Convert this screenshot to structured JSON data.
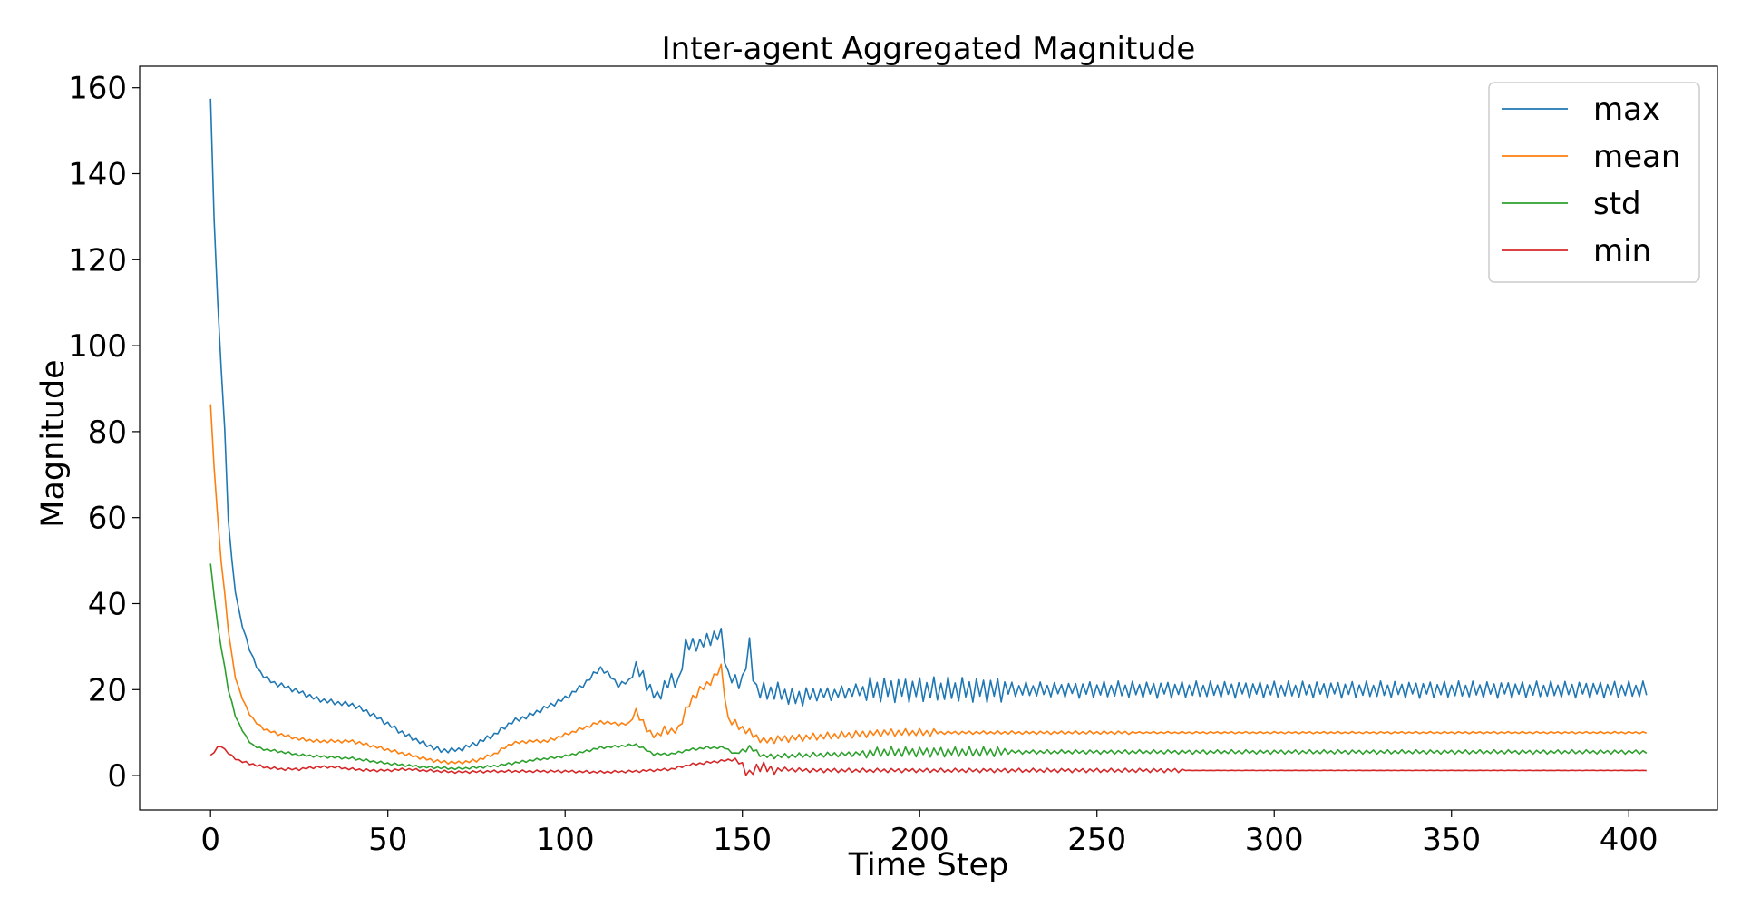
{
  "chart_data": {
    "type": "line",
    "title": "Inter-agent Aggregated Magnitude",
    "xlabel": "Time Step",
    "ylabel": "Magnitude",
    "xlim": [
      -20,
      425
    ],
    "ylim": [
      -8,
      165
    ],
    "xticks": [
      0,
      50,
      100,
      150,
      200,
      250,
      300,
      350,
      400
    ],
    "yticks": [
      0,
      20,
      40,
      60,
      80,
      100,
      120,
      140,
      160
    ],
    "grid": false,
    "legend_position": "top-right",
    "x_range": [
      0,
      405
    ],
    "series": [
      {
        "name": "max",
        "color": "#1f77b4",
        "keypoints": [
          [
            0,
            157
          ],
          [
            1,
            130
          ],
          [
            2,
            110
          ],
          [
            3,
            95
          ],
          [
            4,
            80
          ],
          [
            5,
            60
          ],
          [
            6,
            50
          ],
          [
            7,
            43
          ],
          [
            8,
            38
          ],
          [
            10,
            32
          ],
          [
            12,
            27
          ],
          [
            14,
            24
          ],
          [
            16,
            22.5
          ],
          [
            18,
            21.5
          ],
          [
            20,
            21
          ],
          [
            25,
            19.5
          ],
          [
            30,
            17.8
          ],
          [
            35,
            17
          ],
          [
            40,
            16.5
          ],
          [
            45,
            14.5
          ],
          [
            50,
            12
          ],
          [
            55,
            9.5
          ],
          [
            60,
            7.5
          ],
          [
            65,
            5.8
          ],
          [
            70,
            6
          ],
          [
            75,
            7.5
          ],
          [
            80,
            9.5
          ],
          [
            85,
            12.5
          ],
          [
            90,
            14
          ],
          [
            95,
            16
          ],
          [
            100,
            18
          ],
          [
            105,
            21
          ],
          [
            108,
            23.5
          ],
          [
            110,
            25
          ],
          [
            113,
            23
          ],
          [
            115,
            21
          ],
          [
            118,
            22
          ],
          [
            120,
            25
          ],
          [
            122,
            23
          ],
          [
            124,
            20
          ],
          [
            126,
            18
          ],
          [
            128,
            21
          ],
          [
            130,
            22
          ],
          [
            132,
            22
          ],
          [
            134,
            30
          ],
          [
            136,
            31
          ],
          [
            138,
            30
          ],
          [
            140,
            32
          ],
          [
            142,
            32
          ],
          [
            144,
            33
          ],
          [
            146,
            23
          ],
          [
            148,
            22
          ],
          [
            150,
            22
          ],
          [
            151,
            26
          ],
          [
            152,
            30
          ],
          [
            153,
            24
          ],
          [
            154,
            20
          ],
          [
            155,
            19.5
          ],
          [
            160,
            19.5
          ],
          [
            165,
            18
          ],
          [
            170,
            19
          ],
          [
            175,
            19
          ],
          [
            180,
            19.5
          ],
          [
            185,
            20
          ],
          [
            190,
            20
          ],
          [
            195,
            20
          ],
          [
            200,
            20
          ],
          [
            210,
            20
          ],
          [
            220,
            20
          ],
          [
            230,
            20
          ],
          [
            240,
            20
          ],
          [
            250,
            20
          ],
          [
            260,
            20
          ],
          [
            300,
            20
          ],
          [
            350,
            20
          ],
          [
            405,
            20
          ]
        ],
        "noise": [
          {
            "from": 0,
            "to": 120,
            "amp": 0.6
          },
          {
            "from": 120,
            "to": 150,
            "amp": 1.8
          },
          {
            "from": 150,
            "to": 170,
            "amp": 2.2
          },
          {
            "from": 170,
            "to": 185,
            "amp": 1.6
          },
          {
            "from": 185,
            "to": 225,
            "amp": 3.0
          },
          {
            "from": 225,
            "to": 245,
            "amp": 1.8
          },
          {
            "from": 245,
            "to": 406,
            "amp": 2.0
          }
        ]
      },
      {
        "name": "mean",
        "color": "#ff7f0e",
        "keypoints": [
          [
            0,
            86
          ],
          [
            1,
            72
          ],
          [
            2,
            60
          ],
          [
            3,
            50
          ],
          [
            4,
            42
          ],
          [
            5,
            34
          ],
          [
            6,
            28
          ],
          [
            7,
            23
          ],
          [
            8,
            20
          ],
          [
            10,
            16
          ],
          [
            12,
            13
          ],
          [
            14,
            11.5
          ],
          [
            16,
            10.5
          ],
          [
            18,
            10
          ],
          [
            20,
            9.5
          ],
          [
            25,
            8.5
          ],
          [
            30,
            8
          ],
          [
            40,
            8
          ],
          [
            45,
            7
          ],
          [
            50,
            6
          ],
          [
            55,
            5
          ],
          [
            60,
            4
          ],
          [
            65,
            3.2
          ],
          [
            70,
            3
          ],
          [
            75,
            3.5
          ],
          [
            80,
            5
          ],
          [
            85,
            7.5
          ],
          [
            90,
            8
          ],
          [
            95,
            8
          ],
          [
            100,
            9.5
          ],
          [
            105,
            11
          ],
          [
            110,
            12.5
          ],
          [
            115,
            12
          ],
          [
            118,
            12
          ],
          [
            120,
            15
          ],
          [
            122,
            12
          ],
          [
            124,
            10
          ],
          [
            126,
            9
          ],
          [
            128,
            11
          ],
          [
            130,
            10
          ],
          [
            132,
            11
          ],
          [
            134,
            15
          ],
          [
            136,
            18
          ],
          [
            138,
            20
          ],
          [
            140,
            21
          ],
          [
            142,
            23
          ],
          [
            144,
            25
          ],
          [
            146,
            13
          ],
          [
            148,
            12
          ],
          [
            150,
            11
          ],
          [
            152,
            10
          ],
          [
            154,
            9
          ],
          [
            156,
            8
          ],
          [
            160,
            8.5
          ],
          [
            170,
            9
          ],
          [
            180,
            9.5
          ],
          [
            190,
            10
          ],
          [
            200,
            10
          ],
          [
            205,
            10
          ],
          [
            210,
            10
          ],
          [
            220,
            10
          ],
          [
            230,
            10
          ],
          [
            240,
            10
          ],
          [
            250,
            10
          ],
          [
            300,
            10
          ],
          [
            350,
            10
          ],
          [
            405,
            10
          ]
        ],
        "noise": [
          {
            "from": 0,
            "to": 120,
            "amp": 0.4
          },
          {
            "from": 120,
            "to": 150,
            "amp": 1.0
          },
          {
            "from": 150,
            "to": 205,
            "amp": 0.9
          },
          {
            "from": 205,
            "to": 260,
            "amp": 0.4
          },
          {
            "from": 260,
            "to": 406,
            "amp": 0.25
          }
        ]
      },
      {
        "name": "std",
        "color": "#2ca02c",
        "keypoints": [
          [
            0,
            49
          ],
          [
            1,
            42
          ],
          [
            2,
            35
          ],
          [
            3,
            30
          ],
          [
            4,
            25
          ],
          [
            5,
            20
          ],
          [
            6,
            17
          ],
          [
            7,
            14
          ],
          [
            8,
            12
          ],
          [
            10,
            9
          ],
          [
            12,
            7
          ],
          [
            14,
            6.3
          ],
          [
            16,
            6
          ],
          [
            20,
            5.5
          ],
          [
            25,
            4.8
          ],
          [
            30,
            4.5
          ],
          [
            40,
            4
          ],
          [
            50,
            2.8
          ],
          [
            60,
            2
          ],
          [
            70,
            1.6
          ],
          [
            80,
            2.2
          ],
          [
            90,
            3.5
          ],
          [
            100,
            4.5
          ],
          [
            105,
            5.5
          ],
          [
            110,
            6.5
          ],
          [
            115,
            6.8
          ],
          [
            120,
            7.2
          ],
          [
            125,
            5
          ],
          [
            130,
            5
          ],
          [
            135,
            6
          ],
          [
            140,
            6.5
          ],
          [
            145,
            6.5
          ],
          [
            148,
            5
          ],
          [
            152,
            6.5
          ],
          [
            156,
            4.5
          ],
          [
            160,
            4.5
          ],
          [
            170,
            4.8
          ],
          [
            180,
            5
          ],
          [
            190,
            5.5
          ],
          [
            200,
            5.5
          ],
          [
            210,
            5.5
          ],
          [
            220,
            5.5
          ],
          [
            240,
            5.5
          ],
          [
            260,
            5.5
          ],
          [
            300,
            5.5
          ],
          [
            350,
            5.5
          ],
          [
            405,
            5.5
          ]
        ],
        "noise": [
          {
            "from": 0,
            "to": 150,
            "amp": 0.3
          },
          {
            "from": 150,
            "to": 185,
            "amp": 0.6
          },
          {
            "from": 185,
            "to": 225,
            "amp": 1.2
          },
          {
            "from": 225,
            "to": 406,
            "amp": 0.5
          }
        ]
      },
      {
        "name": "min",
        "color": "#d62728",
        "keypoints": [
          [
            0,
            4.5
          ],
          [
            2,
            6.5
          ],
          [
            3,
            7
          ],
          [
            4,
            6
          ],
          [
            6,
            4.5
          ],
          [
            8,
            3.5
          ],
          [
            10,
            3
          ],
          [
            15,
            2
          ],
          [
            20,
            1.5
          ],
          [
            25,
            1.5
          ],
          [
            30,
            2
          ],
          [
            35,
            2
          ],
          [
            40,
            1.5
          ],
          [
            45,
            1.2
          ],
          [
            50,
            1.2
          ],
          [
            55,
            1.5
          ],
          [
            60,
            1.2
          ],
          [
            70,
            0.8
          ],
          [
            80,
            1
          ],
          [
            90,
            1
          ],
          [
            100,
            1
          ],
          [
            110,
            0.8
          ],
          [
            120,
            1
          ],
          [
            130,
            1.5
          ],
          [
            135,
            2.5
          ],
          [
            140,
            3
          ],
          [
            145,
            3.5
          ],
          [
            148,
            3.8
          ],
          [
            150,
            2
          ],
          [
            152,
            0.5
          ],
          [
            154,
            1.5
          ],
          [
            156,
            2.5
          ],
          [
            158,
            1
          ],
          [
            160,
            1.5
          ],
          [
            170,
            1.2
          ],
          [
            180,
            1.2
          ],
          [
            190,
            1.2
          ],
          [
            200,
            1.2
          ],
          [
            220,
            1.2
          ],
          [
            250,
            1.2
          ],
          [
            270,
            1.2
          ],
          [
            280,
            1.2
          ],
          [
            300,
            1.2
          ],
          [
            350,
            1.2
          ],
          [
            405,
            1.2
          ]
        ],
        "noise": [
          {
            "from": 0,
            "to": 150,
            "amp": 0.3
          },
          {
            "from": 150,
            "to": 160,
            "amp": 1.2
          },
          {
            "from": 160,
            "to": 275,
            "amp": 0.5
          },
          {
            "from": 275,
            "to": 406,
            "amp": 0.05
          }
        ]
      }
    ]
  }
}
